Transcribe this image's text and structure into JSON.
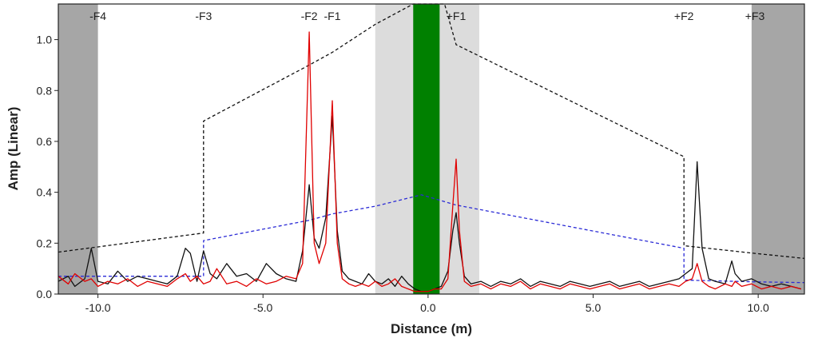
{
  "chart_data": {
    "type": "line",
    "xlabel": "Distance (m)",
    "ylabel": "Amp (Linear)",
    "xlim": [
      -11.2,
      11.4
    ],
    "ylim": [
      0,
      1.14
    ],
    "x_ticks": [
      -10,
      -5,
      0,
      5,
      10
    ],
    "x_tick_labels": [
      "-10.0",
      "-5.0",
      "0.0",
      "5.0",
      "10.0"
    ],
    "y_ticks": [
      0,
      0.2,
      0.4,
      0.6,
      0.8,
      1.0
    ],
    "y_tick_labels": [
      "0.0",
      "0.2",
      "0.4",
      "0.6",
      "0.8",
      "1.0"
    ],
    "grid": false,
    "zones": [
      {
        "label": "-F4",
        "x": -10.0
      },
      {
        "label": "-F3",
        "x": -6.8
      },
      {
        "label": "-F2",
        "x": -3.6
      },
      {
        "label": "-F1",
        "x": -2.9
      },
      {
        "label": "+F1",
        "x": 0.85
      },
      {
        "label": "+F2",
        "x": 7.75
      },
      {
        "label": "+F3",
        "x": 9.9
      }
    ],
    "bands": [
      {
        "x0": -11.2,
        "x1": -10.0,
        "color": "#a6a6a6"
      },
      {
        "x0": -1.6,
        "x1": 1.55,
        "color": "#dcdcdc"
      },
      {
        "x0": -0.45,
        "x1": 0.35,
        "color": "#008000"
      },
      {
        "x0": 9.8,
        "x1": 11.4,
        "color": "#a6a6a6"
      }
    ],
    "colors": {
      "black": "#111111",
      "red": "#e00000",
      "blue": "#2b2bd6",
      "green": "#008000"
    },
    "threshold_black": {
      "x": [
        -11.2,
        -6.8,
        -6.8,
        -3.6,
        -2.9,
        -1.6,
        -0.45,
        0.5,
        0.85,
        7.75,
        7.75,
        9.9,
        11.4
      ],
      "y": [
        0.165,
        0.24,
        0.68,
        0.9,
        0.95,
        1.06,
        1.14,
        1.14,
        0.98,
        0.54,
        0.19,
        0.16,
        0.14
      ]
    },
    "threshold_blue": {
      "x": [
        -11.2,
        -6.8,
        -6.8,
        -3.6,
        -2.9,
        -1.6,
        -0.2,
        0.85,
        7.75,
        7.75,
        9.9,
        11.4
      ],
      "y": [
        0.07,
        0.07,
        0.21,
        0.29,
        0.315,
        0.345,
        0.39,
        0.35,
        0.18,
        0.055,
        0.048,
        0.045
      ]
    },
    "series": [
      {
        "color": "#111111",
        "x": [
          -11.2,
          -10.9,
          -10.7,
          -10.4,
          -10.2,
          -10.0,
          -9.7,
          -9.4,
          -9.1,
          -8.8,
          -8.5,
          -8.2,
          -7.9,
          -7.6,
          -7.35,
          -7.2,
          -7.0,
          -6.8,
          -6.6,
          -6.4,
          -6.1,
          -5.8,
          -5.5,
          -5.2,
          -4.9,
          -4.6,
          -4.3,
          -4.0,
          -3.8,
          -3.6,
          -3.45,
          -3.3,
          -3.1,
          -2.9,
          -2.75,
          -2.6,
          -2.4,
          -2.2,
          -2.0,
          -1.8,
          -1.6,
          -1.4,
          -1.2,
          -1.0,
          -0.8,
          -0.6,
          -0.4,
          -0.2,
          0.0,
          0.2,
          0.4,
          0.6,
          0.75,
          0.85,
          0.95,
          1.1,
          1.3,
          1.6,
          1.9,
          2.2,
          2.5,
          2.8,
          3.1,
          3.4,
          3.7,
          4.0,
          4.3,
          4.6,
          4.9,
          5.2,
          5.5,
          5.8,
          6.1,
          6.4,
          6.7,
          7.0,
          7.3,
          7.6,
          7.8,
          8.0,
          8.15,
          8.3,
          8.5,
          8.7,
          9.0,
          9.2,
          9.3,
          9.5,
          9.8,
          10.1,
          10.4,
          10.7,
          11.0,
          11.3
        ],
        "y": [
          0.05,
          0.07,
          0.03,
          0.06,
          0.18,
          0.05,
          0.04,
          0.09,
          0.05,
          0.07,
          0.06,
          0.05,
          0.04,
          0.07,
          0.18,
          0.16,
          0.05,
          0.17,
          0.08,
          0.06,
          0.12,
          0.07,
          0.08,
          0.05,
          0.12,
          0.08,
          0.06,
          0.05,
          0.17,
          0.43,
          0.22,
          0.18,
          0.3,
          0.7,
          0.25,
          0.09,
          0.06,
          0.05,
          0.04,
          0.08,
          0.05,
          0.04,
          0.06,
          0.03,
          0.07,
          0.04,
          0.02,
          0.01,
          0.01,
          0.02,
          0.03,
          0.09,
          0.25,
          0.32,
          0.2,
          0.07,
          0.04,
          0.05,
          0.03,
          0.05,
          0.04,
          0.06,
          0.03,
          0.05,
          0.04,
          0.03,
          0.05,
          0.04,
          0.03,
          0.04,
          0.05,
          0.03,
          0.04,
          0.05,
          0.03,
          0.04,
          0.05,
          0.06,
          0.08,
          0.1,
          0.52,
          0.18,
          0.06,
          0.05,
          0.04,
          0.13,
          0.08,
          0.05,
          0.06,
          0.04,
          0.03,
          0.04,
          0.03,
          0.02
        ]
      },
      {
        "color": "#e00000",
        "x": [
          -11.2,
          -10.9,
          -10.7,
          -10.4,
          -10.2,
          -10.0,
          -9.7,
          -9.4,
          -9.1,
          -8.8,
          -8.5,
          -8.2,
          -7.9,
          -7.6,
          -7.35,
          -7.2,
          -7.0,
          -6.8,
          -6.6,
          -6.4,
          -6.1,
          -5.8,
          -5.5,
          -5.2,
          -4.9,
          -4.6,
          -4.3,
          -4.0,
          -3.8,
          -3.6,
          -3.45,
          -3.3,
          -3.1,
          -2.9,
          -2.75,
          -2.6,
          -2.4,
          -2.2,
          -2.0,
          -1.8,
          -1.6,
          -1.4,
          -1.2,
          -1.0,
          -0.8,
          -0.6,
          -0.4,
          -0.2,
          0.0,
          0.2,
          0.4,
          0.6,
          0.75,
          0.85,
          0.95,
          1.1,
          1.3,
          1.6,
          1.9,
          2.2,
          2.5,
          2.8,
          3.1,
          3.4,
          3.7,
          4.0,
          4.3,
          4.6,
          4.9,
          5.2,
          5.5,
          5.8,
          6.1,
          6.4,
          6.7,
          7.0,
          7.3,
          7.6,
          7.8,
          8.0,
          8.15,
          8.3,
          8.5,
          8.7,
          9.0,
          9.2,
          9.3,
          9.5,
          9.8,
          10.1,
          10.4,
          10.7,
          11.0,
          11.3
        ],
        "y": [
          0.07,
          0.04,
          0.08,
          0.05,
          0.06,
          0.03,
          0.05,
          0.04,
          0.06,
          0.03,
          0.05,
          0.04,
          0.03,
          0.06,
          0.08,
          0.05,
          0.07,
          0.04,
          0.05,
          0.1,
          0.04,
          0.05,
          0.03,
          0.06,
          0.04,
          0.05,
          0.07,
          0.06,
          0.12,
          1.03,
          0.2,
          0.12,
          0.2,
          0.76,
          0.2,
          0.06,
          0.04,
          0.03,
          0.04,
          0.03,
          0.05,
          0.03,
          0.04,
          0.06,
          0.03,
          0.02,
          0.01,
          0.01,
          0.01,
          0.02,
          0.02,
          0.06,
          0.35,
          0.53,
          0.25,
          0.05,
          0.03,
          0.04,
          0.02,
          0.04,
          0.03,
          0.05,
          0.02,
          0.04,
          0.03,
          0.02,
          0.04,
          0.03,
          0.02,
          0.03,
          0.04,
          0.02,
          0.03,
          0.04,
          0.02,
          0.03,
          0.04,
          0.03,
          0.05,
          0.06,
          0.12,
          0.05,
          0.03,
          0.02,
          0.04,
          0.03,
          0.05,
          0.03,
          0.04,
          0.02,
          0.03,
          0.02,
          0.03,
          0.02
        ]
      }
    ]
  }
}
